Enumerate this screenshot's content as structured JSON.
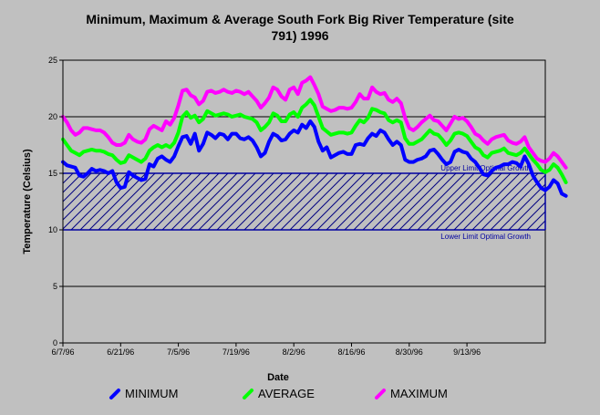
{
  "chart_data": {
    "type": "line",
    "title_line1": "Minimum, Maximum & Average South Fork Big River Temperature (site",
    "title_line2": "791) 1996",
    "xlabel": "Date",
    "ylabel": "Temperature (Celsius)",
    "ylim": [
      0,
      25
    ],
    "yticks": [
      0,
      5,
      10,
      15,
      20,
      25
    ],
    "x_start": "6/7/96",
    "x_end": "10/2/96",
    "xticks": [
      "6/7/96",
      "6/21/96",
      "7/5/96",
      "7/19/96",
      "8/2/96",
      "8/16/96",
      "8/30/96",
      "9/13/96"
    ],
    "grid": true,
    "legend_position": "bottom",
    "optimal_range": {
      "lower": 10,
      "upper": 15,
      "upper_label": "Upper Limit Optimal Growth",
      "lower_label": "Lower Limit Optimal Growth",
      "color": "#0000a0"
    },
    "series": [
      {
        "name": "MINIMUM",
        "color": "#0000ff",
        "values": [
          16.0,
          15.7,
          15.6,
          15.5,
          14.8,
          14.7,
          15.0,
          15.4,
          15.2,
          15.3,
          15.2,
          15.0,
          15.2,
          14.2,
          13.7,
          13.8,
          15.1,
          14.8,
          14.6,
          14.4,
          14.5,
          15.8,
          15.6,
          16.3,
          16.5,
          16.2,
          16.0,
          16.5,
          17.4,
          18.2,
          18.3,
          17.6,
          18.5,
          17.0,
          17.6,
          18.6,
          18.4,
          18.1,
          18.5,
          18.4,
          18.0,
          18.5,
          18.5,
          18.1,
          18.0,
          18.2,
          17.9,
          17.3,
          16.5,
          16.8,
          17.8,
          18.5,
          18.3,
          17.9,
          18.0,
          18.5,
          18.8,
          18.6,
          19.3,
          19.0,
          19.6,
          19.1,
          17.8,
          17.0,
          17.3,
          16.4,
          16.6,
          16.8,
          16.9,
          16.7,
          16.7,
          17.5,
          17.6,
          17.5,
          18.1,
          18.5,
          18.3,
          18.8,
          18.6,
          18.0,
          17.5,
          17.8,
          17.5,
          16.2,
          16.0,
          16.0,
          16.2,
          16.3,
          16.5,
          17.0,
          17.1,
          16.7,
          16.2,
          15.8,
          16.0,
          16.9,
          17.1,
          16.9,
          16.8,
          16.3,
          16.0,
          15.5,
          14.9,
          14.8,
          15.2,
          15.5,
          15.6,
          15.8,
          15.8,
          16.0,
          15.9,
          15.6,
          16.5,
          15.8,
          14.8,
          14.2,
          13.7,
          13.5,
          13.8,
          14.4,
          14.1,
          13.2,
          13.0
        ]
      },
      {
        "name": "AVERAGE",
        "color": "#00ff00",
        "values": [
          18.0,
          17.5,
          17.0,
          16.8,
          16.6,
          16.9,
          17.0,
          17.1,
          17.0,
          17.0,
          16.9,
          16.7,
          16.6,
          16.2,
          15.9,
          16.0,
          16.6,
          16.4,
          16.2,
          16.0,
          16.3,
          17.0,
          17.3,
          17.5,
          17.3,
          17.5,
          17.3,
          17.7,
          18.6,
          20.0,
          20.4,
          19.9,
          20.1,
          19.5,
          19.8,
          20.5,
          20.3,
          20.1,
          20.2,
          20.3,
          20.2,
          20.0,
          20.1,
          20.2,
          20.0,
          19.9,
          19.8,
          19.5,
          18.8,
          19.1,
          19.5,
          20.3,
          20.1,
          19.6,
          19.6,
          20.2,
          20.4,
          20.0,
          20.8,
          21.1,
          21.5,
          21.0,
          20.0,
          19.0,
          18.7,
          18.4,
          18.5,
          18.6,
          18.6,
          18.5,
          18.6,
          19.2,
          19.7,
          19.5,
          19.9,
          20.7,
          20.6,
          20.4,
          20.3,
          19.7,
          19.5,
          19.7,
          19.5,
          18.1,
          17.6,
          17.6,
          17.8,
          18.0,
          18.4,
          18.8,
          18.5,
          18.4,
          18.0,
          17.5,
          17.9,
          18.5,
          18.6,
          18.5,
          18.3,
          17.8,
          17.3,
          17.1,
          16.6,
          16.4,
          16.8,
          16.9,
          17.0,
          17.2,
          16.8,
          16.7,
          16.6,
          16.8,
          17.2,
          16.7,
          16.2,
          15.8,
          15.3,
          15.1,
          15.3,
          15.8,
          15.5,
          14.9,
          14.2
        ]
      },
      {
        "name": "MAXIMUM",
        "color": "#ff00ff",
        "values": [
          20.0,
          19.5,
          18.8,
          18.4,
          18.6,
          19.0,
          19.0,
          18.9,
          18.8,
          18.8,
          18.6,
          18.2,
          17.7,
          17.5,
          17.5,
          17.7,
          18.4,
          18.0,
          17.8,
          17.7,
          18.0,
          18.9,
          19.2,
          19.0,
          18.8,
          19.6,
          19.3,
          19.9,
          21.0,
          22.3,
          22.4,
          21.9,
          21.7,
          21.1,
          21.4,
          22.2,
          22.3,
          22.1,
          22.2,
          22.4,
          22.2,
          22.1,
          22.3,
          22.2,
          22.0,
          22.2,
          21.8,
          21.4,
          20.8,
          21.2,
          21.7,
          22.6,
          22.4,
          21.8,
          21.5,
          22.4,
          22.6,
          22.0,
          23.0,
          23.2,
          23.5,
          22.8,
          22.0,
          20.9,
          20.7,
          20.5,
          20.6,
          20.8,
          20.8,
          20.7,
          20.8,
          21.3,
          22.0,
          21.6,
          21.6,
          22.6,
          22.2,
          22.0,
          22.1,
          21.5,
          21.3,
          21.6,
          21.2,
          19.9,
          19.0,
          18.8,
          19.1,
          19.5,
          19.8,
          20.1,
          19.7,
          19.6,
          19.2,
          18.8,
          19.4,
          20.0,
          19.8,
          19.9,
          19.6,
          19.1,
          18.5,
          18.3,
          17.9,
          17.6,
          18.0,
          18.2,
          18.3,
          18.4,
          17.9,
          17.7,
          17.6,
          17.8,
          18.2,
          17.3,
          16.8,
          16.3,
          16.1,
          16.0,
          16.3,
          16.8,
          16.5,
          16.0,
          15.5
        ]
      }
    ]
  }
}
